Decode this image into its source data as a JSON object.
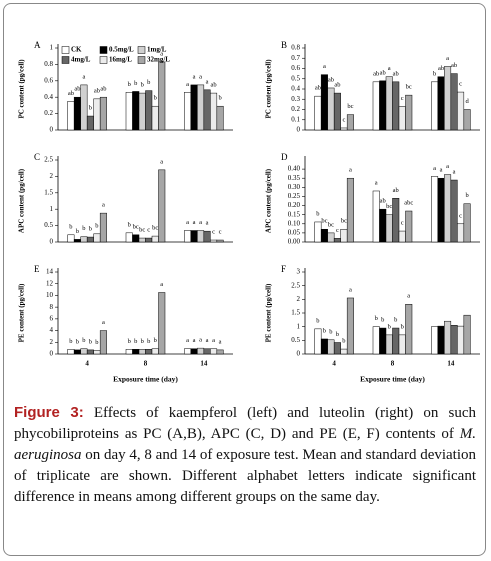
{
  "chart_data": [
    {
      "type": "bar",
      "panel_label": "A",
      "ylabel": "PC content (pg/cell)",
      "ylim": [
        0,
        1
      ],
      "yticks": [
        0,
        0.2,
        0.4,
        0.6,
        0.8,
        1
      ],
      "series": [
        {
          "name": "CK",
          "color": "#ffffff",
          "values": [
            0.35,
            0.46,
            0.46
          ],
          "letters": [
            "ab",
            "b",
            "a"
          ]
        },
        {
          "name": "0.5mg/L",
          "color": "#000000",
          "values": [
            0.4,
            0.47,
            0.55
          ],
          "letters": [
            "ab",
            "b",
            "a"
          ]
        },
        {
          "name": "1mg/L",
          "color": "#d0d0d0",
          "values": [
            0.55,
            0.45,
            0.55
          ],
          "letters": [
            "a",
            "b",
            "a"
          ]
        },
        {
          "name": "4mg/L",
          "color": "#666666",
          "values": [
            0.17,
            0.48,
            0.49
          ],
          "letters": [
            "b",
            "b",
            "a"
          ]
        },
        {
          "name": "16mg/L",
          "color": "#ececec",
          "values": [
            0.38,
            0.29,
            0.45
          ],
          "letters": [
            "ab",
            "b",
            "ab"
          ]
        },
        {
          "name": "32mg/L",
          "color": "#a6a6a6",
          "values": [
            0.4,
            0.83,
            0.29
          ],
          "letters": [
            "ab",
            "a",
            "b"
          ]
        }
      ]
    },
    {
      "type": "bar",
      "panel_label": "B",
      "ylabel": "PC content (pg/cell)",
      "ylim": [
        0,
        0.8
      ],
      "yticks": [
        0,
        0.1,
        0.2,
        0.3,
        0.4,
        0.5,
        0.6,
        0.7,
        0.8
      ],
      "series": [
        {
          "color": "#ffffff",
          "values": [
            0.33,
            0.47,
            0.47
          ],
          "letters": [
            "ab",
            "ab",
            "b"
          ]
        },
        {
          "color": "#000000",
          "values": [
            0.54,
            0.48,
            0.52
          ],
          "letters": [
            "a",
            "ab",
            "ab"
          ]
        },
        {
          "color": "#d0d0d0",
          "values": [
            0.41,
            0.52,
            0.62
          ],
          "letters": [
            "ab",
            "a",
            "a"
          ]
        },
        {
          "color": "#666666",
          "values": [
            0.36,
            0.47,
            0.55
          ],
          "letters": [
            "ab",
            "ab",
            "ab"
          ]
        },
        {
          "color": "#ececec",
          "values": [
            0.02,
            0.23,
            0.37
          ],
          "letters": [
            "c",
            "c",
            "c"
          ]
        },
        {
          "color": "#a6a6a6",
          "values": [
            0.15,
            0.34,
            0.2
          ],
          "letters": [
            "bc",
            "bc",
            "d"
          ]
        }
      ]
    },
    {
      "type": "bar",
      "panel_label": "C",
      "ylabel": "APC content (pg/cell)",
      "ylim": [
        0,
        2.5
      ],
      "yticks": [
        0,
        0.5,
        1,
        1.5,
        2,
        2.5
      ],
      "series": [
        {
          "color": "#ffffff",
          "values": [
            0.22,
            0.28,
            0.35
          ],
          "letters": [
            "b",
            "b",
            "a"
          ]
        },
        {
          "color": "#000000",
          "values": [
            0.08,
            0.22,
            0.35
          ],
          "letters": [
            "b",
            "bc",
            "a"
          ]
        },
        {
          "color": "#d0d0d0",
          "values": [
            0.16,
            0.12,
            0.35
          ],
          "letters": [
            "b",
            "bc",
            "a"
          ]
        },
        {
          "color": "#666666",
          "values": [
            0.15,
            0.12,
            0.33
          ],
          "letters": [
            "b",
            "c",
            "a"
          ]
        },
        {
          "color": "#ececec",
          "values": [
            0.25,
            0.18,
            0.06
          ],
          "letters": [
            "b",
            "bc",
            "c"
          ]
        },
        {
          "color": "#a6a6a6",
          "values": [
            0.88,
            2.2,
            0.06
          ],
          "letters": [
            "a",
            "a",
            "c"
          ]
        }
      ]
    },
    {
      "type": "bar",
      "panel_label": "D",
      "ylabel": "APC content (pg/cell)",
      "ylim": [
        0,
        0.45
      ],
      "yticks": [
        {
          "value": 0,
          "label": "0.00"
        },
        {
          "value": 0.05,
          "label": "0.05"
        },
        {
          "value": 0.1,
          "label": "0.10"
        },
        {
          "value": 0.15,
          "label": "0.15"
        },
        {
          "value": 0.2,
          "label": "0.20"
        },
        {
          "value": 0.25,
          "label": "0.25"
        },
        {
          "value": 0.3,
          "label": "0.30"
        },
        {
          "value": 0.35,
          "label": "0.35"
        },
        {
          "value": 0.4,
          "label": "0.40"
        }
      ],
      "series": [
        {
          "color": "#ffffff",
          "values": [
            0.11,
            0.28,
            0.36
          ],
          "letters": [
            "b",
            "a",
            "a"
          ]
        },
        {
          "color": "#000000",
          "values": [
            0.07,
            0.18,
            0.35
          ],
          "letters": [
            "bc",
            "ab",
            "a"
          ]
        },
        {
          "color": "#d0d0d0",
          "values": [
            0.05,
            0.15,
            0.37
          ],
          "letters": [
            "bc",
            "bc",
            "a"
          ]
        },
        {
          "color": "#666666",
          "values": [
            0.02,
            0.24,
            0.34
          ],
          "letters": [
            "c",
            "ab",
            "a"
          ]
        },
        {
          "color": "#ececec",
          "values": [
            0.07,
            0.06,
            0.1
          ],
          "letters": [
            "bc",
            "c",
            "c"
          ]
        },
        {
          "color": "#a6a6a6",
          "values": [
            0.35,
            0.17,
            0.21
          ],
          "letters": [
            "a",
            "abc",
            "b"
          ]
        }
      ]
    },
    {
      "type": "bar",
      "panel_label": "E",
      "ylabel": "PE content (pg/cell)",
      "ylim": [
        0,
        14
      ],
      "yticks": [
        0,
        2,
        4,
        6,
        8,
        10,
        12,
        14
      ],
      "categories": [
        "4",
        "8",
        "14"
      ],
      "xlabel": "Exposure time (day)",
      "series": [
        {
          "color": "#ffffff",
          "values": [
            0.8,
            0.8,
            0.9
          ],
          "letters": [
            "b",
            "b",
            "a"
          ]
        },
        {
          "color": "#000000",
          "values": [
            0.7,
            0.8,
            0.9
          ],
          "letters": [
            "b",
            "b",
            "a"
          ]
        },
        {
          "color": "#d0d0d0",
          "values": [
            0.9,
            0.8,
            1.0
          ],
          "letters": [
            "b",
            "b",
            "a"
          ]
        },
        {
          "color": "#666666",
          "values": [
            0.7,
            0.8,
            0.9
          ],
          "letters": [
            "b",
            "b",
            "a"
          ]
        },
        {
          "color": "#ececec",
          "values": [
            0.6,
            0.9,
            0.9
          ],
          "letters": [
            "b",
            "b",
            "a"
          ]
        },
        {
          "color": "#a6a6a6",
          "values": [
            4.0,
            10.5,
            0.7
          ],
          "letters": [
            "a",
            "a",
            "a"
          ]
        }
      ]
    },
    {
      "type": "bar",
      "panel_label": "F",
      "ylabel": "PE content (pg/cell)",
      "ylim": [
        0,
        3
      ],
      "yticks": [
        0,
        0.5,
        1,
        1.5,
        2,
        2.5,
        3
      ],
      "categories": [
        "4",
        "8",
        "14"
      ],
      "xlabel": "Exposure time (day)",
      "series": [
        {
          "color": "#ffffff",
          "values": [
            0.92,
            1.0,
            1.0
          ],
          "letters": [
            "b",
            "b",
            null
          ]
        },
        {
          "color": "#000000",
          "values": [
            0.55,
            0.95,
            1.02
          ],
          "letters": [
            "b",
            "b",
            null
          ]
        },
        {
          "color": "#d0d0d0",
          "values": [
            0.52,
            0.7,
            1.2
          ],
          "letters": [
            "b",
            "b",
            null
          ]
        },
        {
          "color": "#666666",
          "values": [
            0.42,
            0.95,
            1.05
          ],
          "letters": [
            "b",
            "b",
            null
          ]
        },
        {
          "color": "#ececec",
          "values": [
            0.18,
            0.7,
            1.02
          ],
          "letters": [
            "b",
            "b",
            null
          ]
        },
        {
          "color": "#a6a6a6",
          "values": [
            2.05,
            1.82,
            1.42
          ],
          "letters": [
            "a",
            "a",
            null
          ]
        }
      ]
    }
  ],
  "caption": {
    "label": "Figure 3:",
    "text1": "Effects of kaempferol (left) and luteolin (right) on such phycobiliproteins as PC (A,B), APC (C, D) and PE (E, F) contents of",
    "species": "M. aeruginosa",
    "text2": "on day 4, 8 and 14 of exposure test. Mean and standard deviation of triplicate are shown. Different alphabet letters indicate significant difference in means among different groups on the same day."
  }
}
